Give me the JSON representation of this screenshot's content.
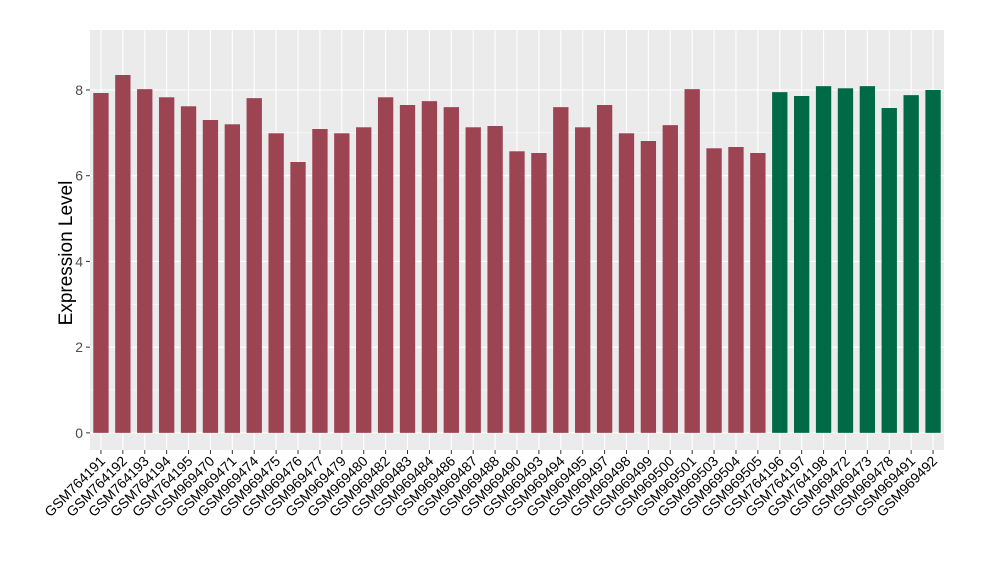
{
  "chart_data": {
    "type": "bar",
    "title": "",
    "xlabel": "",
    "ylabel": "Expression Level",
    "ylim": [
      -0.4,
      9.4
    ],
    "yticks": [
      0,
      2,
      4,
      6,
      8
    ],
    "grid": true,
    "legend": "none",
    "colors": {
      "group1": "#9c4452",
      "group2": "#006a46",
      "panel": "#ebebeb",
      "grid": "#ffffff"
    },
    "categories": [
      "GSM764191",
      "GSM764192",
      "GSM764193",
      "GSM764194",
      "GSM764195",
      "GSM969470",
      "GSM969471",
      "GSM969474",
      "GSM969475",
      "GSM969476",
      "GSM969477",
      "GSM969479",
      "GSM969480",
      "GSM969482",
      "GSM969483",
      "GSM969484",
      "GSM969486",
      "GSM969487",
      "GSM969488",
      "GSM969490",
      "GSM969493",
      "GSM969494",
      "GSM969495",
      "GSM969497",
      "GSM969498",
      "GSM969499",
      "GSM969500",
      "GSM969501",
      "GSM969503",
      "GSM969504",
      "GSM969505",
      "GSM764196",
      "GSM764197",
      "GSM764198",
      "GSM969472",
      "GSM969473",
      "GSM969478",
      "GSM969491",
      "GSM969492"
    ],
    "values": [
      7.93,
      8.35,
      8.02,
      7.83,
      7.62,
      7.3,
      7.2,
      7.81,
      6.99,
      6.32,
      7.09,
      6.99,
      7.13,
      7.83,
      7.65,
      7.74,
      7.6,
      7.13,
      7.16,
      6.57,
      6.53,
      7.6,
      7.13,
      7.65,
      6.99,
      6.81,
      7.18,
      8.02,
      6.64,
      6.67,
      6.53,
      7.95,
      7.86,
      8.09,
      8.04,
      8.09,
      7.58,
      7.88,
      8.0
    ],
    "groups": [
      1,
      1,
      1,
      1,
      1,
      1,
      1,
      1,
      1,
      1,
      1,
      1,
      1,
      1,
      1,
      1,
      1,
      1,
      1,
      1,
      1,
      1,
      1,
      1,
      1,
      1,
      1,
      1,
      1,
      1,
      1,
      2,
      2,
      2,
      2,
      2,
      2,
      2,
      2
    ]
  }
}
